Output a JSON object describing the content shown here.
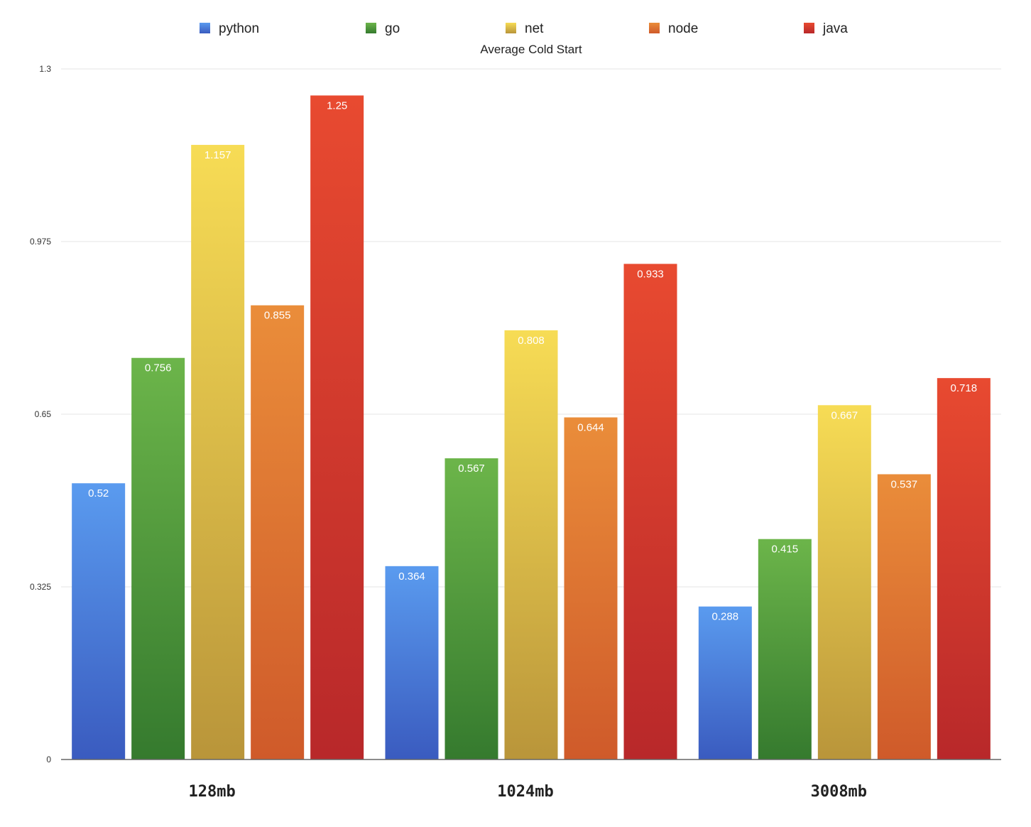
{
  "chart_data": {
    "type": "bar",
    "title": "Average Cold Start",
    "xlabel": "",
    "ylabel": "",
    "categories": [
      "128mb",
      "1024mb",
      "3008mb"
    ],
    "series": [
      {
        "name": "python",
        "values": [
          0.52,
          0.364,
          0.288
        ],
        "labels": [
          "0.52",
          "0.364",
          "0.288"
        ]
      },
      {
        "name": "go",
        "values": [
          0.756,
          0.567,
          0.415
        ],
        "labels": [
          "0.756",
          "0.567",
          "0.415"
        ]
      },
      {
        "name": "net",
        "values": [
          1.157,
          0.808,
          0.667
        ],
        "labels": [
          "1.157",
          "0.808",
          "0.667"
        ]
      },
      {
        "name": "node",
        "values": [
          0.855,
          0.644,
          0.537
        ],
        "labels": [
          "0.855",
          "0.644",
          "0.537"
        ]
      },
      {
        "name": "java",
        "values": [
          1.25,
          0.933,
          0.718
        ],
        "labels": [
          "1.25",
          "0.933",
          "0.718"
        ]
      }
    ],
    "ylim": [
      0,
      1.3
    ],
    "yticks": [
      "0",
      "0.325",
      "0.65",
      "0.975",
      "1.3"
    ],
    "grid": true,
    "legend_position": "top",
    "colors": {
      "python": {
        "top": "#5a9bef",
        "bottom": "#3a5bbf"
      },
      "go": {
        "top": "#6cb54a",
        "bottom": "#357a2e"
      },
      "net": {
        "top": "#f7dc55",
        "bottom": "#b9953a"
      },
      "node": {
        "top": "#ea8d3a",
        "bottom": "#cf5a2a"
      },
      "java": {
        "top": "#e84a30",
        "bottom": "#b8282a"
      }
    }
  }
}
